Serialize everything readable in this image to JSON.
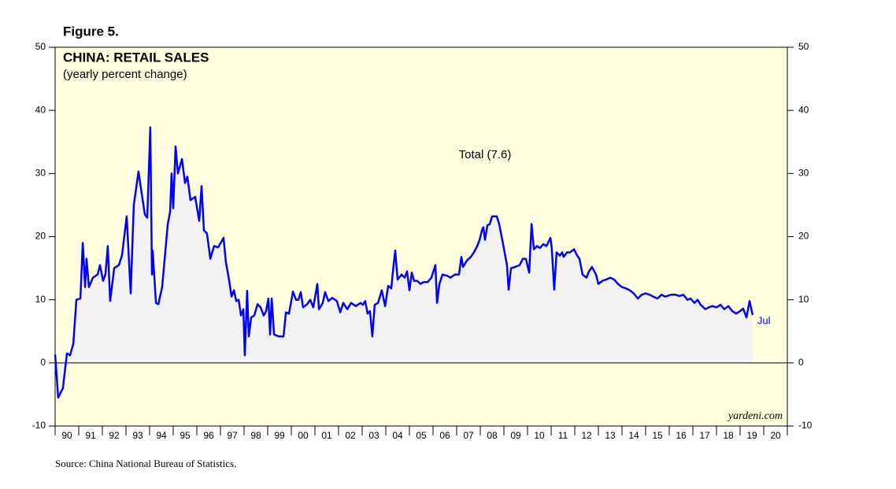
{
  "chart_data": {
    "type": "line",
    "figure_label": "Figure 5.",
    "title": "CHINA: RETAIL SALES",
    "subtitle": "(yearly percent change)",
    "annotation": "Jul",
    "watermark": "yardeni.com",
    "source": "Source: China National Bureau of Statistics.",
    "background": "#ffffe0",
    "area_color": "#f2f2f2",
    "xlim": [
      1990,
      2021
    ],
    "xticks": [
      {
        "value": 1990.5,
        "label": "90"
      },
      {
        "value": 1991.5,
        "label": "91"
      },
      {
        "value": 1992.5,
        "label": "92"
      },
      {
        "value": 1993.5,
        "label": "93"
      },
      {
        "value": 1994.5,
        "label": "94"
      },
      {
        "value": 1995.5,
        "label": "95"
      },
      {
        "value": 1996.5,
        "label": "96"
      },
      {
        "value": 1997.5,
        "label": "97"
      },
      {
        "value": 1998.5,
        "label": "98"
      },
      {
        "value": 1999.5,
        "label": "99"
      },
      {
        "value": 2000.5,
        "label": "00"
      },
      {
        "value": 2001.5,
        "label": "01"
      },
      {
        "value": 2002.5,
        "label": "02"
      },
      {
        "value": 2003.5,
        "label": "03"
      },
      {
        "value": 2004.5,
        "label": "04"
      },
      {
        "value": 2005.5,
        "label": "05"
      },
      {
        "value": 2006.5,
        "label": "06"
      },
      {
        "value": 2007.5,
        "label": "07"
      },
      {
        "value": 2008.5,
        "label": "08"
      },
      {
        "value": 2009.5,
        "label": "09"
      },
      {
        "value": 2010.5,
        "label": "10"
      },
      {
        "value": 2011.5,
        "label": "11"
      },
      {
        "value": 2012.5,
        "label": "12"
      },
      {
        "value": 2013.5,
        "label": "13"
      },
      {
        "value": 2014.5,
        "label": "14"
      },
      {
        "value": 2015.5,
        "label": "15"
      },
      {
        "value": 2016.5,
        "label": "16"
      },
      {
        "value": 2017.5,
        "label": "17"
      },
      {
        "value": 2018.5,
        "label": "18"
      },
      {
        "value": 2019.5,
        "label": "19"
      },
      {
        "value": 2020.5,
        "label": "20"
      }
    ],
    "ylim": [
      -10,
      50
    ],
    "yticks": [
      -10,
      0,
      10,
      20,
      30,
      40,
      50
    ],
    "y2lim": [
      -10,
      50
    ],
    "y2ticks": [
      -10,
      0,
      10,
      20,
      30,
      40,
      50
    ],
    "x": [
      1990.0,
      1990.13,
      1990.33,
      1990.5,
      1990.63,
      1990.77,
      1990.9,
      1991.07,
      1991.17,
      1991.27,
      1991.33,
      1991.43,
      1991.6,
      1991.8,
      1991.9,
      1992.03,
      1992.13,
      1992.23,
      1992.33,
      1992.5,
      1992.7,
      1992.83,
      1993.03,
      1993.2,
      1993.33,
      1993.53,
      1993.7,
      1993.8,
      1993.9,
      1994.03,
      1994.1,
      1994.13,
      1994.27,
      1994.37,
      1994.53,
      1994.77,
      1994.87,
      1994.93,
      1995.0,
      1995.1,
      1995.2,
      1995.37,
      1995.5,
      1995.6,
      1995.73,
      1995.93,
      1996.1,
      1996.2,
      1996.3,
      1996.43,
      1996.57,
      1996.73,
      1996.9,
      1997.13,
      1997.23,
      1997.37,
      1997.47,
      1997.57,
      1997.67,
      1997.77,
      1997.87,
      1997.97,
      1998.03,
      1998.13,
      1998.2,
      1998.3,
      1998.43,
      1998.57,
      1998.7,
      1998.83,
      1998.93,
      1999.03,
      1999.1,
      1999.17,
      1999.27,
      1999.47,
      1999.67,
      1999.77,
      1999.9,
      2000.07,
      2000.2,
      2000.3,
      2000.4,
      2000.5,
      2000.67,
      2000.8,
      2000.93,
      2001.1,
      2001.17,
      2001.33,
      2001.43,
      2001.57,
      2001.73,
      2001.93,
      2002.07,
      2002.2,
      2002.37,
      2002.53,
      2002.73,
      2002.93,
      2003.03,
      2003.13,
      2003.23,
      2003.33,
      2003.43,
      2003.53,
      2003.67,
      2003.83,
      2003.97,
      2004.1,
      2004.23,
      2004.33,
      2004.4,
      2004.5,
      2004.67,
      2004.8,
      2004.9,
      2005.0,
      2005.1,
      2005.2,
      2005.33,
      2005.47,
      2005.6,
      2005.77,
      2005.93,
      2006.1,
      2006.17,
      2006.27,
      2006.4,
      2006.6,
      2006.73,
      2006.93,
      2007.1,
      2007.2,
      2007.27,
      2007.43,
      2007.6,
      2007.73,
      2007.87,
      2007.97,
      2008.07,
      2008.13,
      2008.2,
      2008.3,
      2008.4,
      2008.5,
      2008.7,
      2008.8,
      2008.93,
      2009.03,
      2009.13,
      2009.2,
      2009.3,
      2009.47,
      2009.67,
      2009.8,
      2009.93,
      2010.07,
      2010.17,
      2010.27,
      2010.4,
      2010.53,
      2010.67,
      2010.8,
      2010.97,
      2011.03,
      2011.13,
      2011.23,
      2011.37,
      2011.47,
      2011.53,
      2011.67,
      2011.8,
      2011.97,
      2012.1,
      2012.2,
      2012.33,
      2012.5,
      2012.6,
      2012.73,
      2012.9,
      2013.0,
      2013.17,
      2013.33,
      2013.5,
      2013.67,
      2013.83,
      2014.0,
      2014.17,
      2014.33,
      2014.5,
      2014.67,
      2014.83,
      2015.0,
      2015.17,
      2015.33,
      2015.5,
      2015.67,
      2015.83,
      2016.07,
      2016.27,
      2016.43,
      2016.6,
      2016.77,
      2016.9,
      2017.07,
      2017.2,
      2017.33,
      2017.53,
      2017.67,
      2017.83,
      2018.0,
      2018.17,
      2018.33,
      2018.5,
      2018.67,
      2018.83,
      2019.0,
      2019.13,
      2019.27,
      2019.4,
      2019.53
    ],
    "series": [
      {
        "name": "Total (7.6)",
        "color": "#0000ff",
        "values": [
          1.3,
          -5.5,
          -4,
          1.5,
          1.2,
          3,
          10,
          10.2,
          19,
          12,
          16.5,
          12,
          13.5,
          14,
          15.5,
          13,
          14,
          18.5,
          9.8,
          15,
          15.5,
          17,
          23.2,
          11,
          25,
          30.3,
          26,
          23.5,
          23,
          37.3,
          14,
          17.8,
          9.5,
          9.3,
          12,
          22,
          24,
          30,
          24.5,
          34.3,
          30,
          32.3,
          28.5,
          29.5,
          25.8,
          26.3,
          22.5,
          28,
          21,
          20.5,
          16.5,
          18.5,
          18.3,
          19.8,
          16,
          13,
          10.5,
          11.5,
          9.8,
          10,
          7.5,
          8.5,
          1.2,
          11.4,
          4.2,
          7.2,
          7.5,
          9.3,
          8.8,
          7.5,
          8.2,
          10.2,
          4.5,
          10.2,
          4.5,
          4.2,
          4.2,
          8,
          7.8,
          11.3,
          10,
          10,
          11.2,
          8.8,
          9.3,
          10,
          8.8,
          12.5,
          8.5,
          9.5,
          11.2,
          9.8,
          10.3,
          9.8,
          8,
          9.5,
          8.5,
          9.5,
          9,
          9.5,
          9.2,
          9.8,
          7.8,
          8.2,
          4.2,
          9.2,
          9.5,
          11.5,
          9,
          12.2,
          11.8,
          15.5,
          17.8,
          13.2,
          14,
          13.5,
          14.5,
          11.5,
          14.3,
          13,
          13,
          12.5,
          12.8,
          12.8,
          13.5,
          15.5,
          9.5,
          12.5,
          14,
          13.8,
          13.5,
          14,
          14,
          16.8,
          15.2,
          16.2,
          16.8,
          17.5,
          18.5,
          19.5,
          21,
          21.5,
          19.5,
          21.8,
          22,
          23.2,
          23.2,
          22,
          19.5,
          17.5,
          15.5,
          11.6,
          15,
          15.2,
          15.5,
          16.5,
          16.5,
          14.3,
          22,
          18,
          18.5,
          18.2,
          18.8,
          18.5,
          19.8,
          18,
          11.6,
          17.5,
          17,
          17.5,
          16.8,
          17.5,
          17.5,
          18,
          17,
          16.5,
          14,
          13.5,
          14.5,
          15.2,
          14,
          12.5,
          13,
          13.2,
          13.5,
          13.2,
          12.5,
          12,
          11.8,
          11.5,
          11,
          10.2,
          10.8,
          11,
          10.8,
          10.5,
          10.2,
          10.8,
          10.5,
          10.8,
          10.8,
          10.6,
          10.8,
          10,
          10.2,
          9.5,
          10,
          9.2,
          8.5,
          8.8,
          9,
          8.8,
          9.2,
          8.5,
          9,
          8.2,
          7.8,
          8.2,
          8.6,
          7.2,
          9.8,
          7.6
        ]
      }
    ]
  }
}
